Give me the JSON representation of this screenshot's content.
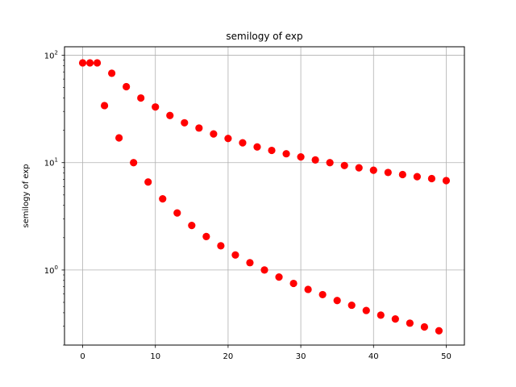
{
  "chart_data": {
    "type": "scatter",
    "title": "semilogy of exp",
    "xlabel": "",
    "ylabel": "semilogy of exp",
    "yscale": "log",
    "xlim": [
      -2.5,
      52.5
    ],
    "ylim": [
      0.2,
      120
    ],
    "grid": true,
    "marker": "circle",
    "colors": {
      "points": "#ff0000",
      "grid": "#b0b0b0",
      "axes": "#000000"
    },
    "x_ticks": [
      {
        "value": 0,
        "label": "0"
      },
      {
        "value": 10,
        "label": "10"
      },
      {
        "value": 20,
        "label": "20"
      },
      {
        "value": 30,
        "label": "30"
      },
      {
        "value": 40,
        "label": "40"
      },
      {
        "value": 50,
        "label": "50"
      }
    ],
    "y_ticks": [
      {
        "value": 1,
        "base": "10",
        "exp": "0"
      },
      {
        "value": 10,
        "base": "10",
        "exp": "1"
      },
      {
        "value": 100,
        "base": "10",
        "exp": "2"
      }
    ],
    "series": [
      {
        "x": [
          0,
          1,
          2,
          3,
          4,
          5,
          6,
          7,
          8,
          9,
          10,
          11,
          12,
          13,
          14,
          15,
          16,
          17,
          18,
          19,
          20,
          21,
          22,
          23,
          24,
          25,
          26,
          27,
          28,
          29,
          30,
          31,
          32,
          33,
          34,
          35,
          36,
          37,
          38,
          39,
          40,
          41,
          42,
          43,
          44,
          45,
          46,
          47,
          48,
          49,
          50
        ],
        "y": [
          85,
          85,
          85,
          34,
          68,
          17,
          51,
          10,
          40,
          6.6,
          33,
          4.6,
          27.5,
          3.4,
          23.5,
          2.6,
          21,
          2.05,
          18.5,
          1.68,
          16.8,
          1.38,
          15.3,
          1.17,
          14,
          1.0,
          13,
          0.86,
          12.1,
          0.75,
          11.3,
          0.66,
          10.6,
          0.59,
          10.0,
          0.52,
          9.4,
          0.47,
          8.95,
          0.42,
          8.5,
          0.38,
          8.1,
          0.35,
          7.75,
          0.32,
          7.4,
          0.295,
          7.1,
          0.272,
          6.8
        ]
      }
    ]
  }
}
